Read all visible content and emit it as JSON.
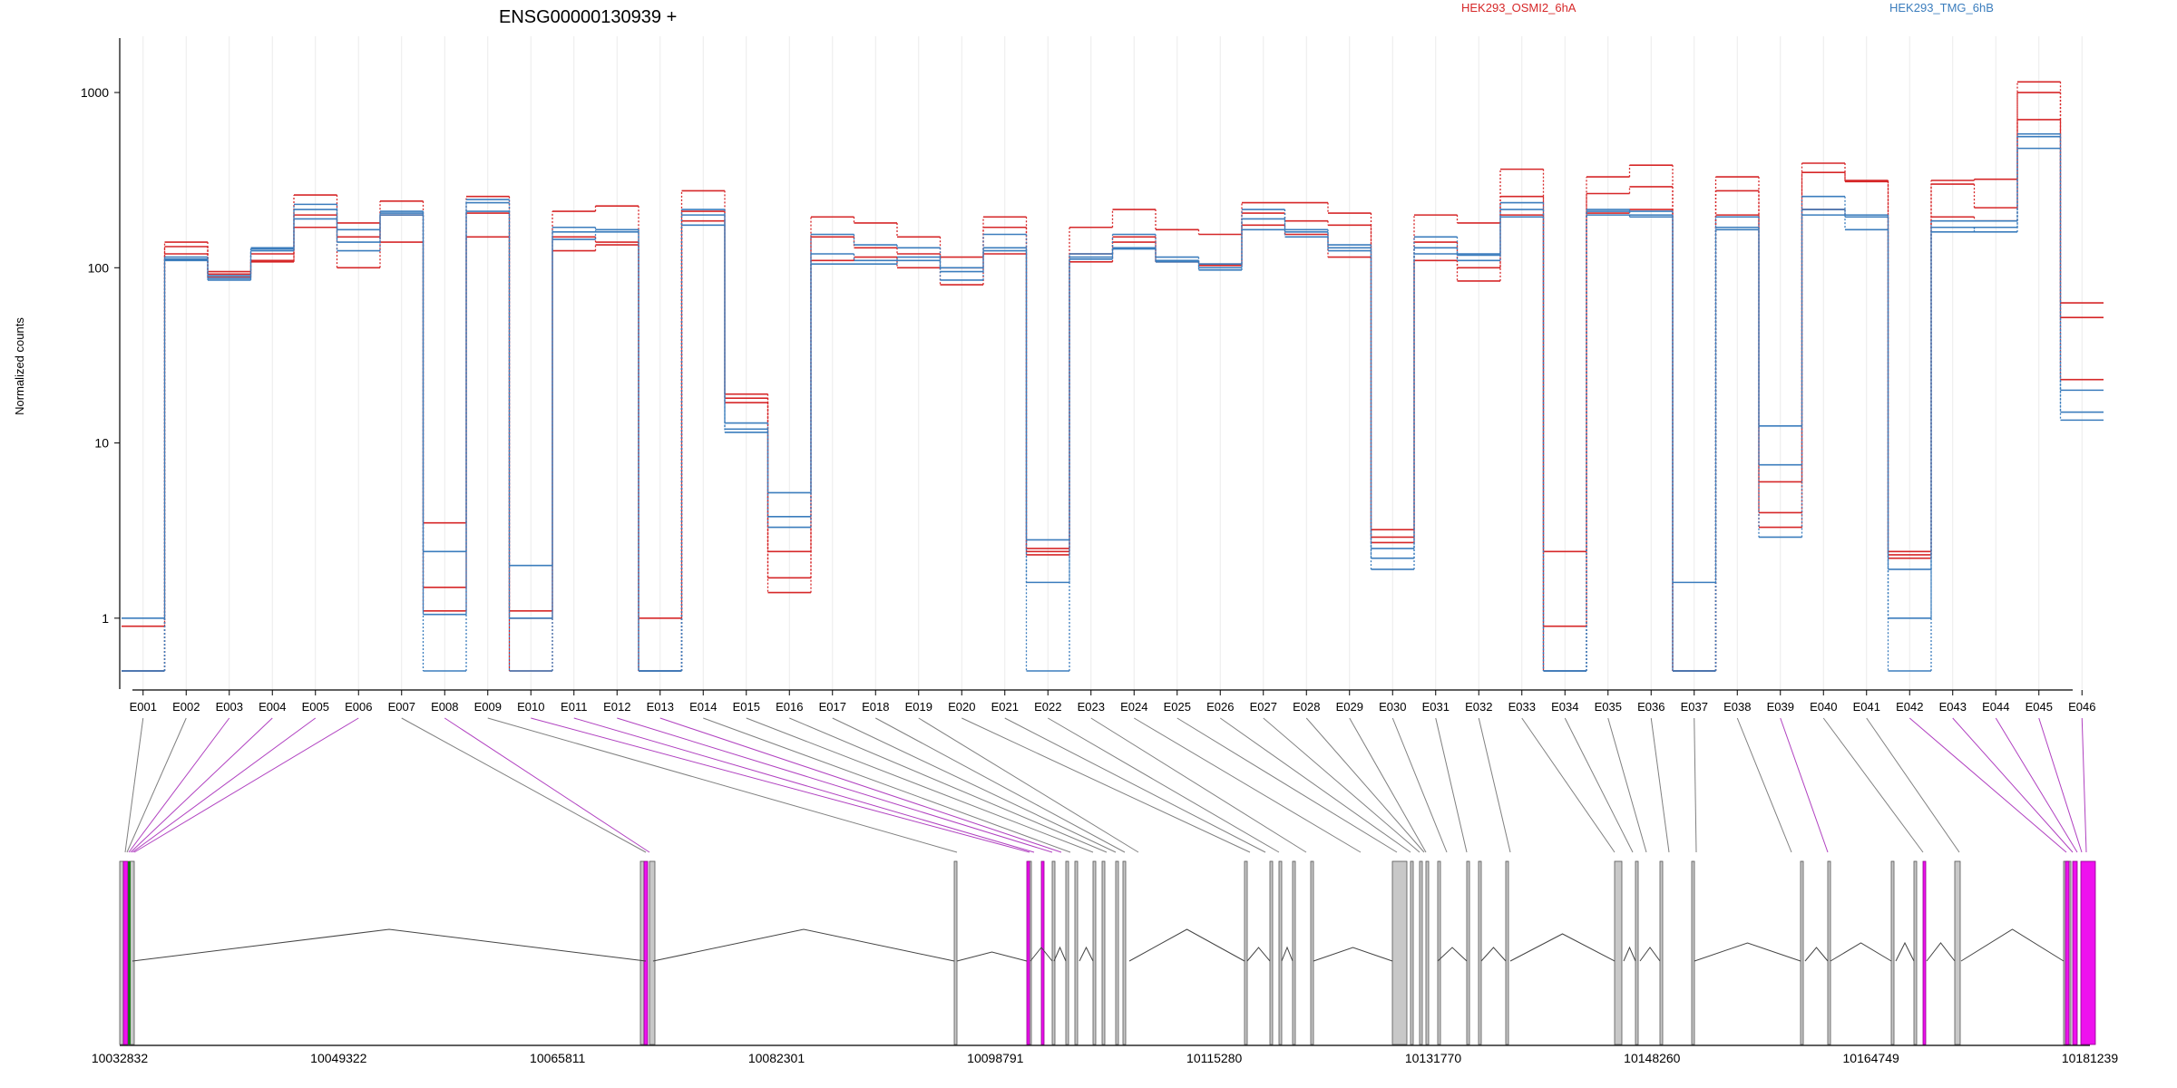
{
  "chart_data": {
    "type": "line",
    "title": "ENSG00000130939 +",
    "ylabel": "Normalized counts",
    "yscale": "log",
    "ylim": [
      0.5,
      1500
    ],
    "yticks": [
      1,
      10,
      100,
      1000
    ],
    "ytick_labels": [
      "1",
      "10",
      "100",
      "1000"
    ],
    "categories": [
      "E001",
      "E002",
      "E003",
      "E004",
      "E005",
      "E006",
      "E007",
      "E008",
      "E009",
      "E010",
      "E011",
      "E012",
      "E013",
      "E014",
      "E015",
      "E016",
      "E017",
      "E018",
      "E019",
      "E020",
      "E021",
      "E022",
      "E023",
      "E024",
      "E025",
      "E026",
      "E027",
      "E028",
      "E029",
      "E030",
      "E031",
      "E032",
      "E033",
      "E034",
      "E035",
      "E036",
      "E037",
      "E038",
      "E039",
      "E040",
      "E041",
      "E042",
      "E043",
      "E044",
      "E045",
      "E046"
    ],
    "colors": {
      "HEK293_OSMI2_6hA": "#d62728",
      "HEK293_TMG_6hB": "#3b7dbd",
      "gene_exon": "#c8c8c8",
      "gene_exon_highlight": "#ee11ee",
      "connector": "#808080",
      "connector_highlight": "#b040c0"
    },
    "legend": [
      {
        "name": "HEK293_OSMI2_6hA",
        "color": "#d62728"
      },
      {
        "name": "HEK293_TMG_6hB",
        "color": "#3b7dbd"
      }
    ],
    "series": [
      {
        "group": "HEK293_OSMI2_6hA",
        "values": [
          0.9,
          140,
          95,
          120,
          260,
          180,
          140,
          3.5,
          255,
          1.1,
          210,
          225,
          1.0,
          275,
          19,
          1.4,
          195,
          180,
          150,
          115,
          195,
          2.5,
          170,
          215,
          165,
          155,
          235,
          235,
          205,
          3.2,
          200,
          180,
          365,
          2.4,
          330,
          385,
          0.5,
          330,
          3.3,
          395,
          315,
          2.4,
          315,
          320,
          1150,
          63
        ]
      },
      {
        "group": "HEK293_OSMI2_6hA",
        "values": [
          0.5,
          132,
          92,
          110,
          200,
          100,
          240,
          1.5,
          150,
          1.0,
          125,
          135,
          0.5,
          210,
          17,
          2.4,
          150,
          130,
          120,
          100,
          170,
          2.3,
          108,
          150,
          110,
          105,
          205,
          185,
          175,
          2.7,
          110,
          84,
          255,
          0.9,
          265,
          290,
          0.5,
          275,
          6.0,
          350,
          310,
          2.2,
          300,
          220,
          700,
          52
        ]
      },
      {
        "group": "HEK293_OSMI2_6hA",
        "values": [
          0.5,
          120,
          88,
          108,
          170,
          150,
          200,
          1.1,
          205,
          0.5,
          150,
          140,
          0.5,
          185,
          18,
          1.7,
          110,
          115,
          100,
          80,
          120,
          2.4,
          120,
          140,
          108,
          103,
          175,
          155,
          115,
          2.9,
          140,
          100,
          200,
          0.5,
          205,
          215,
          0.5,
          200,
          4.0,
          215,
          195,
          2.3,
          195,
          185,
          1000,
          23
        ]
      },
      {
        "group": "HEK293_TMG_6hB",
        "values": [
          1.0,
          115,
          90,
          130,
          230,
          165,
          210,
          2.4,
          245,
          2.0,
          170,
          165,
          0.5,
          215,
          13,
          5.2,
          155,
          135,
          130,
          100,
          155,
          2.8,
          120,
          155,
          115,
          105,
          215,
          160,
          130,
          2.5,
          150,
          120,
          235,
          0.5,
          215,
          210,
          1.6,
          195,
          12.5,
          255,
          200,
          1.0,
          185,
          185,
          580,
          20
        ]
      },
      {
        "group": "HEK293_TMG_6hB",
        "values": [
          0.5,
          110,
          85,
          125,
          190,
          125,
          200,
          1.05,
          235,
          1.0,
          160,
          160,
          0.5,
          200,
          12,
          3.8,
          120,
          110,
          115,
          95,
          125,
          1.6,
          112,
          130,
          110,
          97,
          190,
          150,
          125,
          2.2,
          120,
          110,
          215,
          0.5,
          210,
          200,
          0.5,
          165,
          7.5,
          215,
          195,
          1.9,
          170,
          160,
          560,
          15
        ]
      },
      {
        "group": "HEK293_TMG_6hB",
        "values": [
          0.5,
          112,
          87,
          128,
          215,
          140,
          205,
          0.5,
          210,
          0.5,
          145,
          165,
          0.5,
          175,
          11.5,
          3.3,
          105,
          105,
          110,
          85,
          130,
          0.5,
          115,
          128,
          108,
          100,
          165,
          165,
          135,
          1.9,
          130,
          118,
          195,
          0.5,
          200,
          195,
          0.5,
          170,
          2.9,
          200,
          165,
          0.5,
          160,
          170,
          480,
          13.5
        ]
      }
    ],
    "gene_model": {
      "xlim": [
        10032832,
        10181239
      ],
      "coordinate_labels": [
        "10032832",
        "10049322",
        "10065811",
        "10082301",
        "10098791",
        "10115280",
        "10131770",
        "10148260",
        "10164749",
        "10181239"
      ]
    }
  }
}
